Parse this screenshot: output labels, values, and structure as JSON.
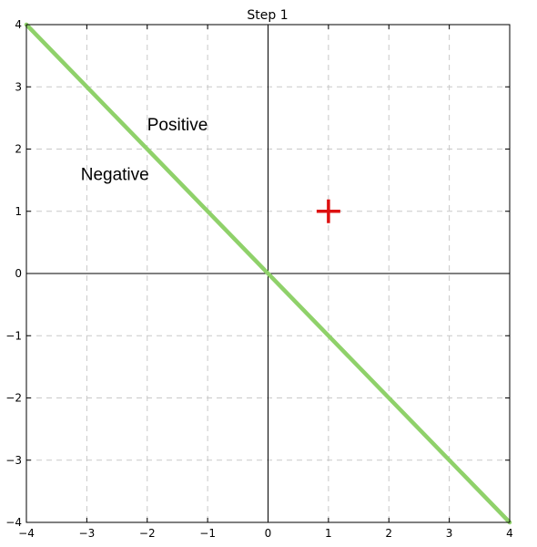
{
  "chart_data": {
    "type": "line",
    "title": "Step 1",
    "xlabel": "",
    "ylabel": "",
    "xlim": [
      -4,
      4
    ],
    "ylim": [
      -4,
      4
    ],
    "xticks": [
      -4,
      -3,
      -2,
      -1,
      0,
      1,
      2,
      3,
      4
    ],
    "yticks": [
      -4,
      -3,
      -2,
      -1,
      0,
      1,
      2,
      3,
      4
    ],
    "xtick_labels": [
      "−4",
      "−3",
      "−2",
      "−1",
      "0",
      "1",
      "2",
      "3",
      "4"
    ],
    "ytick_labels": [
      "−4",
      "−3",
      "−2",
      "−1",
      "0",
      "1",
      "2",
      "3",
      "4"
    ],
    "grid": true,
    "grid_style": "dashed",
    "series": [
      {
        "type": "line",
        "color": "#8fd16a",
        "x": [
          -4,
          4
        ],
        "y": [
          4,
          -4
        ]
      },
      {
        "type": "scatter",
        "marker": "plus",
        "color": "#dd1111",
        "x": [
          1
        ],
        "y": [
          1
        ]
      }
    ],
    "annotations": [
      {
        "text": "Positive",
        "x": -2.0,
        "y": 2.3
      },
      {
        "text": "Negative",
        "x": -3.1,
        "y": 1.5
      }
    ]
  }
}
